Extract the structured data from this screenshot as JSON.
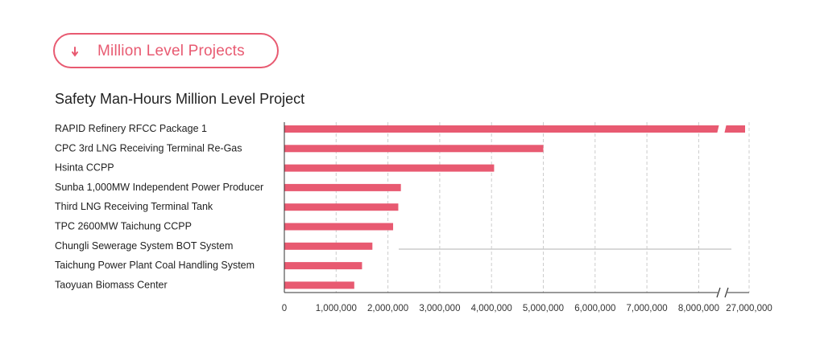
{
  "header": {
    "pill_label": "Million Level Projects",
    "pill_icon": "chevron-down-icon"
  },
  "colors": {
    "accent": "#e85a71",
    "bar": "#e85a71",
    "grid": "#cccccc",
    "axis": "#333333",
    "text": "#222222"
  },
  "chart_data": {
    "type": "bar",
    "orientation": "horizontal",
    "title": "Safety Man-Hours Million Level Project",
    "xlabel": "",
    "ylabel": "",
    "categories": [
      "RAPID Refinery RFCC Package 1",
      "CPC 3rd LNG Receiving Terminal Re-Gas",
      "Hsinta CCPP",
      "Sunba 1,000MW Independent Power Producer",
      "Third LNG Receiving Terminal Tank",
      "TPC 2600MW Taichung CCPP",
      "Chungli Sewerage System BOT System",
      "Taichung Power Plant Coal Handling System",
      "Taoyuan Biomass Center"
    ],
    "values": [
      27000000,
      5000000,
      4050000,
      2250000,
      2200000,
      2100000,
      1700000,
      1500000,
      1350000
    ],
    "xlim": [
      0,
      27000000
    ],
    "axis_break": {
      "from": 8000000,
      "to": 27000000
    },
    "x_ticks": [
      0,
      1000000,
      2000000,
      3000000,
      4000000,
      5000000,
      6000000,
      7000000,
      8000000,
      27000000
    ],
    "x_tick_labels": [
      "0",
      "1,000,000",
      "2,000,000",
      "3,000,000",
      "4,000,000",
      "5,000,000",
      "6,000,000",
      "7,000,000",
      "8,000,000",
      "27,000,000"
    ],
    "grid": true,
    "legend": "none"
  }
}
